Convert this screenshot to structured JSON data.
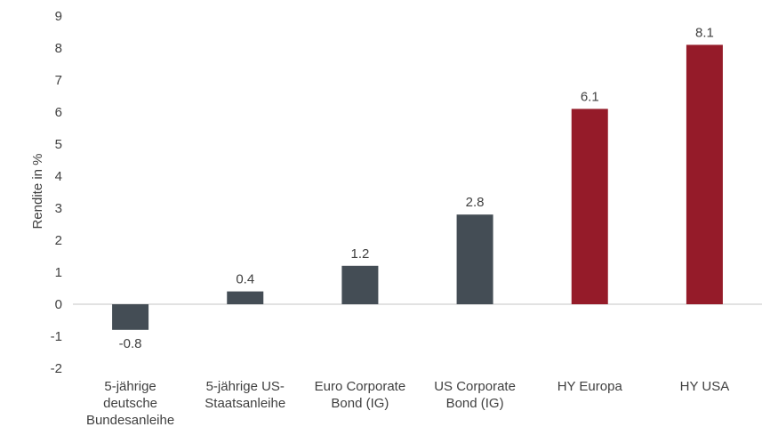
{
  "chart_data": {
    "type": "bar",
    "title": "",
    "xlabel": "",
    "ylabel": "Rendite in %",
    "ylim": [
      -2,
      9
    ],
    "yticks": [
      9,
      8,
      7,
      6,
      5,
      4,
      3,
      2,
      1,
      0,
      -1,
      -2
    ],
    "grid": false,
    "legend": "none",
    "categories": [
      [
        "5-jährige",
        "deutsche",
        "Bundesanleihe"
      ],
      [
        "5-jährige US-",
        "Staatsanleihe"
      ],
      [
        "Euro Corporate",
        "Bond (IG)"
      ],
      [
        "US Corporate",
        "Bond (IG)"
      ],
      [
        "HY Europa"
      ],
      [
        "HY USA"
      ]
    ],
    "values": [
      -0.8,
      0.4,
      1.2,
      2.8,
      6.1,
      8.1
    ],
    "data_labels": [
      "-0.8",
      "0.4",
      "1.2",
      "2.8",
      "6.1",
      "8.1"
    ],
    "bar_colors": [
      "#444d55",
      "#444d55",
      "#444d55",
      "#444d55",
      "#951b29",
      "#951b29"
    ],
    "axis_line_color": "#d9d9d9"
  }
}
